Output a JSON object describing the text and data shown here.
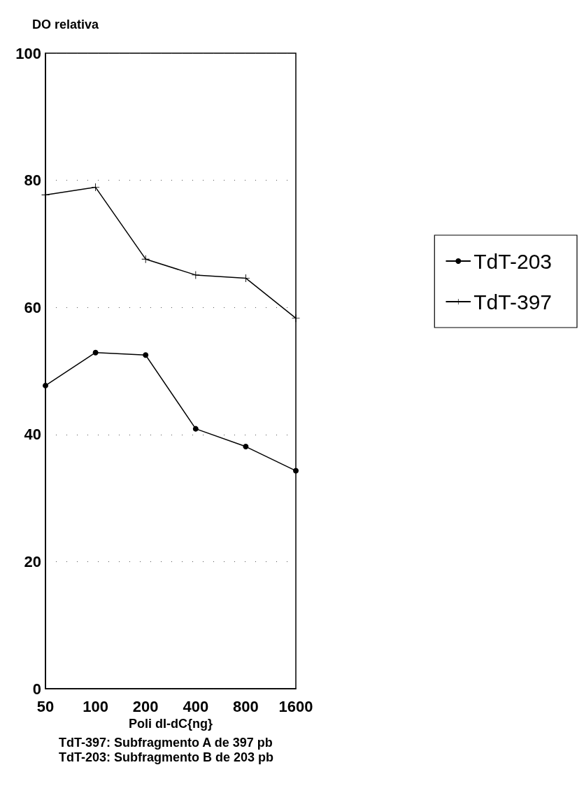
{
  "chart_data": {
    "type": "line",
    "ylabel": "DO relativa",
    "xlabel": "Poli dI-dC{ng}",
    "categories": [
      "50",
      "100",
      "200",
      "400",
      "800",
      "1600"
    ],
    "series": [
      {
        "name": "TdT-203",
        "color": "#000000",
        "marker": "circle",
        "values": [
          47.7,
          52.9,
          52.5,
          40.9,
          38.1,
          34.3
        ]
      },
      {
        "name": "TdT-397",
        "color": "#000000",
        "marker": "cross",
        "values": [
          77.7,
          78.9,
          67.6,
          65.1,
          64.6,
          58.3
        ]
      }
    ],
    "ylim": [
      0,
      100
    ],
    "yticks": [
      0,
      20,
      40,
      60,
      80,
      100
    ],
    "grid": "y",
    "legend": "right",
    "line_style": "solid",
    "annotations": [
      "TdT-397: Subfragmento A de 397 pb",
      "TdT-203: Subfragmento B de 203 pb"
    ]
  }
}
